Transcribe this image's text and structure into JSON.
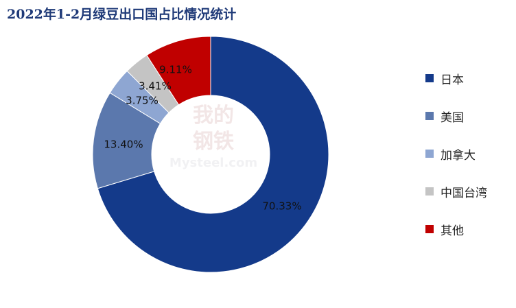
{
  "chart_data": {
    "type": "pie",
    "title": "2022年1-2月绿豆出口国占比情况统计",
    "categories": [
      "日本",
      "美国",
      "加拿大",
      "中国台湾",
      "其他"
    ],
    "values": [
      70.33,
      13.4,
      3.75,
      3.41,
      9.11
    ],
    "data_labels": [
      "70.33%",
      "13.40%",
      "3.75%",
      "3.41%",
      "9.11%"
    ],
    "colors": [
      "#143a8a",
      "#5b78ad",
      "#8ea6d2",
      "#c4c4c4",
      "#c00000"
    ],
    "legend_position": "right",
    "donut": true
  },
  "watermark": {
    "line1": "我的",
    "line2": "钢铁",
    "line3": "Mysteel.com"
  }
}
